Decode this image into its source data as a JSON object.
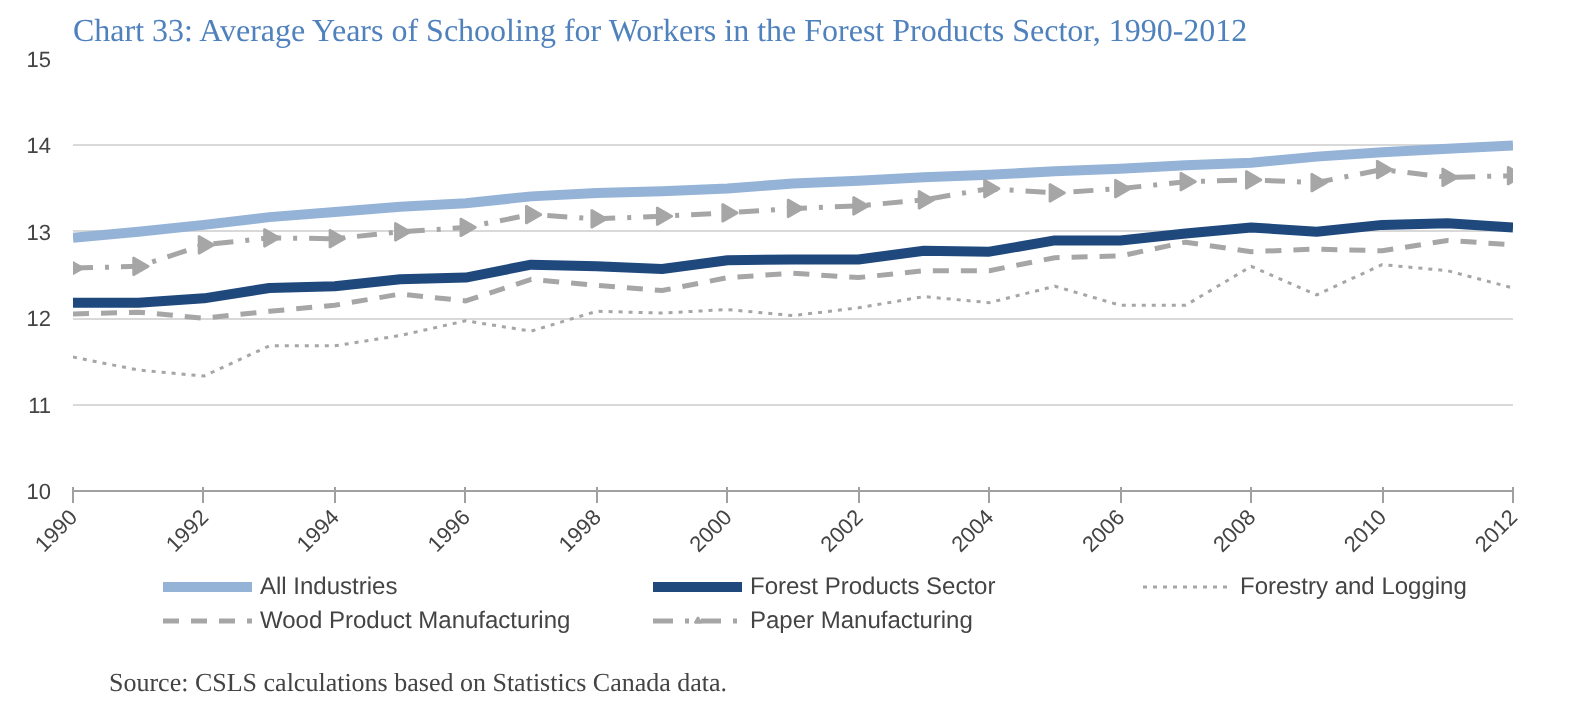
{
  "chart_data": {
    "type": "line",
    "title": "Chart 33: Average Years of Schooling for Workers in the Forest Products Sector, 1990-2012",
    "x": [
      1990,
      1991,
      1992,
      1993,
      1994,
      1995,
      1996,
      1997,
      1998,
      1999,
      2000,
      2001,
      2002,
      2003,
      2004,
      2005,
      2006,
      2007,
      2008,
      2009,
      2010,
      2011,
      2012
    ],
    "xlim": [
      1990,
      2012
    ],
    "xticks": [
      1990,
      1992,
      1994,
      1996,
      1998,
      2000,
      2002,
      2004,
      2006,
      2008,
      2010,
      2012
    ],
    "ylim": [
      10,
      15
    ],
    "yticks": [
      10,
      11,
      12,
      13,
      14,
      15
    ],
    "grid": "y",
    "legend": "bottom",
    "annotations": [
      "Source: CSLS calculations based on Statistics Canada data."
    ],
    "series": [
      {
        "name": "All Industries",
        "color": "#95b3d7",
        "line_style": "solid",
        "values": [
          12.93,
          13.0,
          13.08,
          13.17,
          13.23,
          13.29,
          13.33,
          13.41,
          13.45,
          13.47,
          13.5,
          13.56,
          13.59,
          13.63,
          13.66,
          13.7,
          13.73,
          13.77,
          13.8,
          13.87,
          13.92,
          13.96,
          14.0
        ]
      },
      {
        "name": "Forest Products Sector",
        "color": "#1f497d",
        "line_style": "solid",
        "values": [
          12.18,
          12.18,
          12.23,
          12.35,
          12.37,
          12.45,
          12.47,
          12.62,
          12.6,
          12.57,
          12.67,
          12.68,
          12.68,
          12.78,
          12.77,
          12.9,
          12.9,
          12.98,
          13.05,
          13.0,
          13.08,
          13.1,
          13.05
        ]
      },
      {
        "name": "Forestry and Logging",
        "color": "#a6a6a6",
        "line_style": "dotted",
        "values": [
          11.55,
          11.4,
          11.33,
          11.68,
          11.68,
          11.8,
          11.97,
          11.85,
          12.08,
          12.06,
          12.1,
          12.03,
          12.12,
          12.25,
          12.18,
          12.37,
          12.15,
          12.15,
          12.6,
          12.27,
          12.62,
          12.55,
          12.35
        ]
      },
      {
        "name": "Wood Product Manufacturing",
        "color": "#a6a6a6",
        "line_style": "dashed",
        "values": [
          12.05,
          12.07,
          12.0,
          12.08,
          12.15,
          12.28,
          12.2,
          12.45,
          12.38,
          12.32,
          12.47,
          12.52,
          12.47,
          12.55,
          12.55,
          12.7,
          12.72,
          12.88,
          12.77,
          12.8,
          12.78,
          12.9,
          12.85
        ]
      },
      {
        "name": "Paper Manufacturing",
        "color": "#a6a6a6",
        "line_style": "dashdot",
        "marker": "triangle",
        "values": [
          12.58,
          12.6,
          12.85,
          12.93,
          12.92,
          13.0,
          13.05,
          13.2,
          13.15,
          13.18,
          13.22,
          13.27,
          13.3,
          13.37,
          13.5,
          13.45,
          13.5,
          13.58,
          13.6,
          13.57,
          13.72,
          13.63,
          13.65
        ]
      }
    ]
  }
}
